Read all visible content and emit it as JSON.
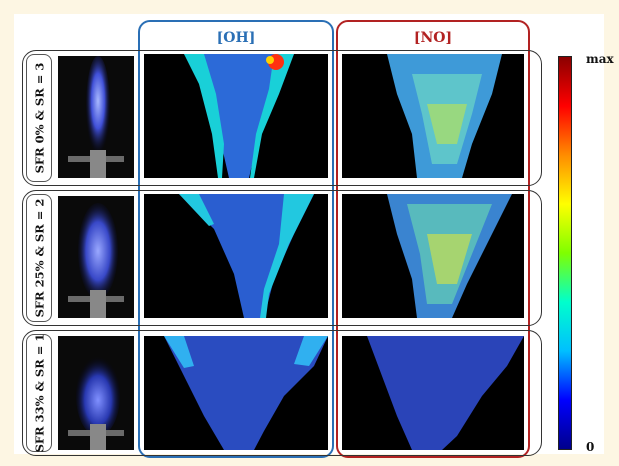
{
  "columns": {
    "oh": {
      "label": "[OH]",
      "color": "#2a6fb5"
    },
    "no": {
      "label": "[NO]",
      "color": "#b22222"
    }
  },
  "rows": [
    {
      "label": "SFR 0% & SR = 3"
    },
    {
      "label": "SFR 25% & SR = 2"
    },
    {
      "label": "SFR 33% & SR = 1"
    }
  ],
  "colorbar": {
    "max_label": "max",
    "min_label": "0",
    "colors": [
      "#00008b",
      "#0000ff",
      "#00bfff",
      "#00ffcc",
      "#7fff00",
      "#ffff00",
      "#ff8c00",
      "#ff0000",
      "#8b0000"
    ]
  }
}
